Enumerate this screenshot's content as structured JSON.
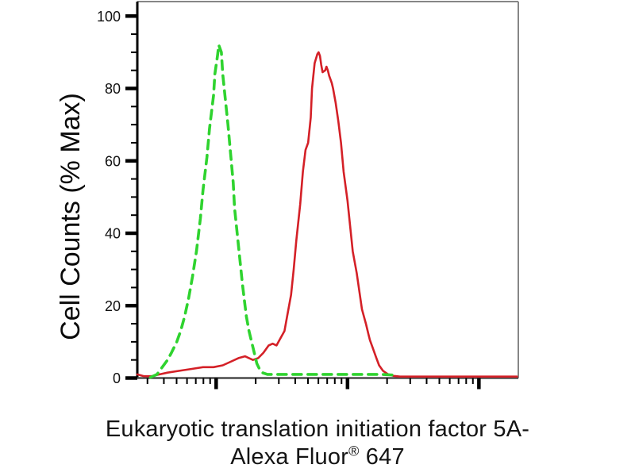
{
  "figure": {
    "background": "#ffffff",
    "caption_line1": "Eukaryotic translation initiation factor 5A-",
    "caption_line2_before": "Alexa Fluor",
    "caption_line2_sup": "®",
    "caption_line2_after": " 647"
  },
  "chart_data": {
    "type": "line",
    "subtype": "flow-cytometry-histogram-overlay",
    "title": "",
    "ylabel": "Cell Counts (% Max)",
    "xlabel": "Eukaryotic translation initiation factor 5A-Alexa Fluor® 647",
    "grid": false,
    "legend": "none",
    "y_axis": {
      "min": 0,
      "max": 100,
      "plot_top_value": 104,
      "major_ticks": [
        0,
        20,
        40,
        60,
        80,
        100
      ],
      "minor_tick_step": 5
    },
    "x_axis": {
      "scale": "log",
      "tick_labels": "none",
      "visible_decades_min": 0.4,
      "visible_decades_max": 3.3,
      "major_tick_decades": [
        1,
        2,
        3
      ]
    },
    "series": [
      {
        "name": "red-solid-stained",
        "style": "solid",
        "color": "#d42027",
        "line_width": 2.6,
        "peak_x_decades": 1.78,
        "peak_percent_max": 90,
        "points": [
          [
            0.4,
            1.0
          ],
          [
            0.45,
            0.5
          ],
          [
            0.51,
            0.5
          ],
          [
            0.57,
            1.0
          ],
          [
            0.63,
            1.5
          ],
          [
            0.72,
            2.0
          ],
          [
            0.81,
            2.5
          ],
          [
            0.9,
            3.0
          ],
          [
            0.98,
            3.0
          ],
          [
            1.05,
            3.5
          ],
          [
            1.11,
            4.5
          ],
          [
            1.17,
            5.5
          ],
          [
            1.22,
            6.0
          ],
          [
            1.25,
            5.5
          ],
          [
            1.28,
            5.0
          ],
          [
            1.32,
            5.5
          ],
          [
            1.36,
            7.0
          ],
          [
            1.4,
            9.0
          ],
          [
            1.43,
            9.5
          ],
          [
            1.46,
            9.0
          ],
          [
            1.49,
            11.0
          ],
          [
            1.52,
            13.0
          ],
          [
            1.54,
            17.0
          ],
          [
            1.57,
            23.0
          ],
          [
            1.59,
            30.0
          ],
          [
            1.61,
            38.0
          ],
          [
            1.64,
            48.0
          ],
          [
            1.66,
            57.0
          ],
          [
            1.68,
            63.0
          ],
          [
            1.7,
            65.0
          ],
          [
            1.72,
            72.0
          ],
          [
            1.73,
            80.0
          ],
          [
            1.75,
            87.0
          ],
          [
            1.77,
            89.5
          ],
          [
            1.78,
            90.0
          ],
          [
            1.79,
            89.0
          ],
          [
            1.8,
            86.5
          ],
          [
            1.81,
            84.5
          ],
          [
            1.83,
            85.0
          ],
          [
            1.84,
            86.0
          ],
          [
            1.85,
            85.0
          ],
          [
            1.86,
            83.5
          ],
          [
            1.88,
            81.5
          ],
          [
            1.89,
            80.0
          ],
          [
            1.91,
            76.0
          ],
          [
            1.93,
            71.0
          ],
          [
            1.95,
            65.0
          ],
          [
            1.97,
            57.0
          ],
          [
            2.0,
            49.0
          ],
          [
            2.02,
            42.0
          ],
          [
            2.04,
            35.0
          ],
          [
            2.07,
            29.0
          ],
          [
            2.09,
            24.0
          ],
          [
            2.11,
            19.0
          ],
          [
            2.14,
            15.0
          ],
          [
            2.16,
            12.0
          ],
          [
            2.17,
            10.5
          ],
          [
            2.19,
            8.5
          ],
          [
            2.22,
            5.5
          ],
          [
            2.24,
            3.5
          ],
          [
            2.27,
            2.0
          ],
          [
            2.31,
            1.0
          ],
          [
            2.35,
            0.6
          ],
          [
            2.4,
            0.4
          ],
          [
            2.49,
            0.4
          ],
          [
            2.74,
            0.4
          ],
          [
            2.98,
            0.4
          ],
          [
            3.29,
            0.4
          ]
        ]
      },
      {
        "name": "green-dashed-control",
        "style": "dashed",
        "color": "#2fd32f",
        "line_width": 3.6,
        "dash_pattern": [
          11,
          8
        ],
        "peak_x_decades": 1.02,
        "peak_percent_max": 92,
        "points": [
          [
            0.5,
            0.2
          ],
          [
            0.55,
            1.0
          ],
          [
            0.59,
            3.0
          ],
          [
            0.63,
            5.0
          ],
          [
            0.66,
            7.0
          ],
          [
            0.7,
            10.0
          ],
          [
            0.73,
            13.0
          ],
          [
            0.76,
            17.0
          ],
          [
            0.79,
            22.0
          ],
          [
            0.82,
            28.0
          ],
          [
            0.85,
            35.0
          ],
          [
            0.88,
            44.0
          ],
          [
            0.9,
            52.0
          ],
          [
            0.93,
            61.0
          ],
          [
            0.95,
            69.0
          ],
          [
            0.98,
            78.0
          ],
          [
            0.99,
            84.0
          ],
          [
            1.01,
            89.0
          ],
          [
            1.02,
            92.0
          ],
          [
            1.04,
            90.0
          ],
          [
            1.05,
            84.0
          ],
          [
            1.07,
            77.0
          ],
          [
            1.09,
            70.0
          ],
          [
            1.11,
            62.0
          ],
          [
            1.13,
            54.0
          ],
          [
            1.14,
            47.0
          ],
          [
            1.16,
            40.0
          ],
          [
            1.18,
            33.0
          ],
          [
            1.2,
            26.0
          ],
          [
            1.22,
            20.0
          ],
          [
            1.23,
            17.0
          ],
          [
            1.25,
            13.0
          ],
          [
            1.27,
            10.0
          ],
          [
            1.29,
            7.0
          ],
          [
            1.31,
            4.0
          ],
          [
            1.33,
            2.5
          ],
          [
            1.35,
            1.5
          ],
          [
            1.39,
            1.0
          ],
          [
            1.5,
            1.0
          ],
          [
            1.65,
            1.0
          ],
          [
            1.8,
            1.0
          ],
          [
            1.95,
            1.0
          ],
          [
            2.1,
            1.0
          ],
          [
            2.25,
            1.0
          ],
          [
            2.37,
            0.8
          ]
        ]
      }
    ],
    "colors": {
      "axis_left": "#000000",
      "axis_bottom": "#4a4a4a",
      "frame_top_right": "#868686",
      "tick": "#000000",
      "tick_label": "#111111"
    }
  }
}
